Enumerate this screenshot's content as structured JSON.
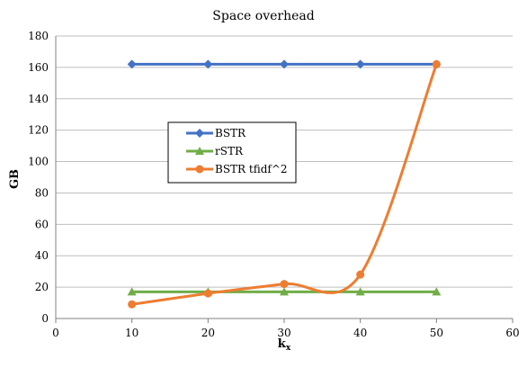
{
  "chart_data": {
    "type": "scatter",
    "title": "Space overhead",
    "xlabel": "k",
    "xlabel_sub": "x",
    "ylabel": "GB",
    "xlim": [
      0,
      60
    ],
    "ylim": [
      0,
      180
    ],
    "xticks": [
      0,
      10,
      20,
      30,
      40,
      50,
      60
    ],
    "yticks": [
      0,
      20,
      40,
      60,
      80,
      100,
      120,
      140,
      160,
      180
    ],
    "grid": "horizontal",
    "legend_position": "center-left",
    "series": [
      {
        "name": "BSTR",
        "color": "#4472c4",
        "marker": "diamond",
        "smooth": false,
        "x": [
          10,
          20,
          30,
          40,
          50
        ],
        "y": [
          162,
          162,
          162,
          162,
          162
        ]
      },
      {
        "name": "rSTR",
        "color": "#70ad47",
        "marker": "triangle",
        "smooth": false,
        "x": [
          10,
          20,
          30,
          40,
          50
        ],
        "y": [
          17,
          17,
          17,
          17,
          17
        ]
      },
      {
        "name": "BSTR tfidf^2",
        "color": "#ed7d31",
        "marker": "circle",
        "smooth": true,
        "x": [
          10,
          20,
          30,
          40,
          50
        ],
        "y": [
          9,
          16,
          22,
          28,
          162
        ]
      }
    ]
  }
}
